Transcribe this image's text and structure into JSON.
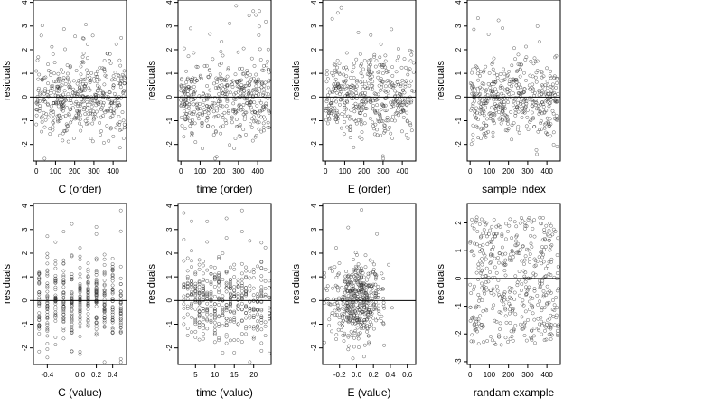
{
  "colors": {
    "axis": "#000000",
    "points": "#333333",
    "background": "#ffffff"
  },
  "chart_data": [
    {
      "type": "scatter",
      "title": "",
      "xlabel": "C (order)",
      "ylabel": "residuals",
      "xlim": [
        -15,
        470
      ],
      "ylim": [
        -2.7,
        4.1
      ],
      "xticks": [
        0,
        100,
        200,
        300,
        400
      ],
      "yticks": [
        -2,
        -1,
        0,
        1,
        2,
        3,
        4
      ],
      "hline": 0,
      "grid": false,
      "points_gen": "order",
      "seed": 11,
      "n": 450
    },
    {
      "type": "scatter",
      "title": "",
      "xlabel": "time (order)",
      "ylabel": "residuals",
      "xlim": [
        -15,
        470
      ],
      "ylim": [
        -2.7,
        4.1
      ],
      "xticks": [
        0,
        100,
        200,
        300,
        400
      ],
      "yticks": [
        -2,
        -1,
        0,
        1,
        2,
        3,
        4
      ],
      "hline": 0,
      "grid": false,
      "points_gen": "order",
      "seed": 23,
      "n": 450
    },
    {
      "type": "scatter",
      "title": "",
      "xlabel": "E (order)",
      "ylabel": "residuals",
      "xlim": [
        -15,
        470
      ],
      "ylim": [
        -2.7,
        4.1
      ],
      "xticks": [
        0,
        100,
        200,
        300,
        400
      ],
      "yticks": [
        -2,
        -1,
        0,
        1,
        2,
        3,
        4
      ],
      "hline": 0,
      "grid": false,
      "points_gen": "order",
      "seed": 37,
      "n": 450
    },
    {
      "type": "scatter",
      "title": "",
      "xlabel": "sample index",
      "ylabel": "residuals",
      "xlim": [
        -15,
        470
      ],
      "ylim": [
        -2.7,
        4.1
      ],
      "xticks": [
        0,
        100,
        200,
        300,
        400
      ],
      "yticks": [
        -2,
        -1,
        0,
        1,
        2,
        3,
        4
      ],
      "hline": 0,
      "grid": false,
      "points_gen": "order",
      "seed": 53,
      "n": 450
    },
    {
      "type": "scatter",
      "title": "",
      "xlabel": "C (value)",
      "ylabel": "residuals",
      "xlim": [
        -0.57,
        0.57
      ],
      "ylim": [
        -2.7,
        4.1
      ],
      "xticks": [
        -0.4,
        0.0,
        0.2,
        0.4
      ],
      "xtick_labels": [
        "-0.4",
        "0.0",
        "0.2",
        "0.4"
      ],
      "yticks": [
        -2,
        -1,
        0,
        1,
        2,
        3,
        4
      ],
      "hline": 0,
      "grid": false,
      "points_gen": "discrete",
      "x_levels": [
        -0.5,
        -0.4,
        -0.3,
        -0.2,
        -0.1,
        0.0,
        0.1,
        0.2,
        0.3,
        0.4,
        0.5
      ],
      "seed": 71,
      "n": 450
    },
    {
      "type": "scatter",
      "title": "",
      "xlabel": "time (value)",
      "ylabel": "residuals",
      "xlim": [
        0.5,
        24.5
      ],
      "ylim": [
        -2.7,
        4.1
      ],
      "xticks": [
        5,
        10,
        15,
        20
      ],
      "yticks": [
        -2,
        -1,
        0,
        1,
        2,
        3,
        4
      ],
      "hline": 0,
      "grid": false,
      "points_gen": "discrete",
      "x_levels": [
        2,
        3,
        4,
        5,
        6,
        7,
        8,
        9,
        10,
        11,
        12,
        13,
        14,
        15,
        16,
        17,
        18,
        19,
        20,
        21,
        22,
        23,
        24
      ],
      "seed": 83,
      "n": 450
    },
    {
      "type": "scatter",
      "title": "",
      "xlabel": "E (value)",
      "ylabel": "residuals",
      "xlim": [
        -0.4,
        0.7
      ],
      "ylim": [
        -2.7,
        4.1
      ],
      "xticks": [
        -0.2,
        0.0,
        0.2,
        0.4,
        0.6
      ],
      "xtick_labels": [
        "-0.2",
        "0.0",
        "0.2",
        "0.4",
        "0.6"
      ],
      "yticks": [
        -2,
        -1,
        0,
        1,
        2,
        3,
        4
      ],
      "hline": 0,
      "grid": false,
      "points_gen": "cluster",
      "seed": 97,
      "n": 450
    },
    {
      "type": "scatter",
      "title": "",
      "xlabel": "randam example",
      "ylabel": "residuals",
      "xlim": [
        -15,
        470
      ],
      "ylim": [
        -3.1,
        2.7
      ],
      "xticks": [
        0,
        100,
        200,
        300,
        400
      ],
      "yticks": [
        -3,
        -2,
        -1,
        0,
        1,
        2
      ],
      "hline": 0,
      "grid": false,
      "points_gen": "uniform",
      "seed": 113,
      "n": 450
    }
  ]
}
